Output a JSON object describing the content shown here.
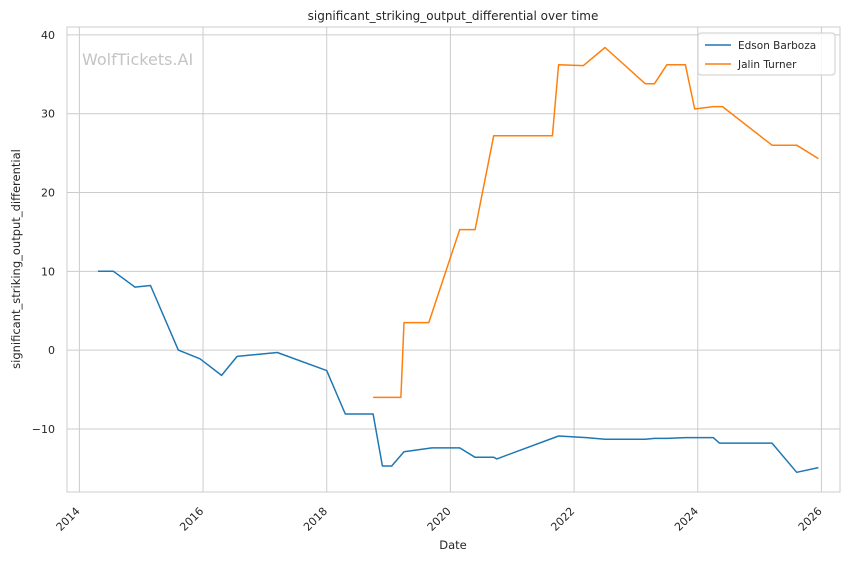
{
  "chart_data": {
    "type": "line",
    "title": "significant_striking_output_differential over time",
    "xlabel": "Date",
    "ylabel": "significant_striking_output_differential",
    "watermark": "WolfTickets.AI",
    "xlim": [
      2013.8,
      2026.3
    ],
    "ylim": [
      -18,
      41
    ],
    "xticks": [
      2014,
      2016,
      2018,
      2020,
      2022,
      2024,
      2026
    ],
    "yticks": [
      -10,
      0,
      10,
      20,
      30,
      40
    ],
    "ytick_labels": [
      "−10",
      "0",
      "10",
      "20",
      "30",
      "40"
    ],
    "grid": true,
    "legend_position": "top-right",
    "series": [
      {
        "name": "Edson Barboza",
        "color": "#1f77b4",
        "x": [
          2014.3,
          2014.55,
          2014.9,
          2015.15,
          2015.6,
          2015.95,
          2016.3,
          2016.55,
          2017.2,
          2018.0,
          2018.3,
          2018.75,
          2018.9,
          2019.05,
          2019.25,
          2019.7,
          2020.15,
          2020.4,
          2020.7,
          2020.75,
          2021.75,
          2022.2,
          2022.5,
          2023.15,
          2023.3,
          2023.5,
          2023.8,
          2024.25,
          2024.35,
          2025.2,
          2025.6,
          2025.95
        ],
        "y": [
          10.0,
          10.0,
          8.0,
          8.2,
          0.0,
          -1.1,
          -3.2,
          -0.8,
          -0.3,
          -2.6,
          -8.1,
          -8.1,
          -14.7,
          -14.7,
          -12.9,
          -12.4,
          -12.4,
          -13.6,
          -13.6,
          -13.8,
          -10.9,
          -11.1,
          -11.3,
          -11.3,
          -11.2,
          -11.2,
          -11.1,
          -11.1,
          -11.8,
          -11.8,
          -15.5,
          -14.9
        ]
      },
      {
        "name": "Jalin Turner",
        "color": "#ff7f0e",
        "x": [
          2018.75,
          2019.2,
          2019.25,
          2019.65,
          2020.15,
          2020.4,
          2020.7,
          2021.65,
          2021.75,
          2022.15,
          2022.5,
          2023.15,
          2023.3,
          2023.5,
          2023.8,
          2023.95,
          2024.25,
          2024.4,
          2025.2,
          2025.6,
          2025.95
        ],
        "y": [
          -6.0,
          -6.0,
          3.5,
          3.5,
          15.3,
          15.3,
          27.2,
          27.2,
          36.2,
          36.1,
          38.4,
          33.8,
          33.8,
          36.2,
          36.2,
          30.6,
          30.9,
          30.9,
          26.0,
          26.0,
          24.3
        ]
      }
    ]
  }
}
